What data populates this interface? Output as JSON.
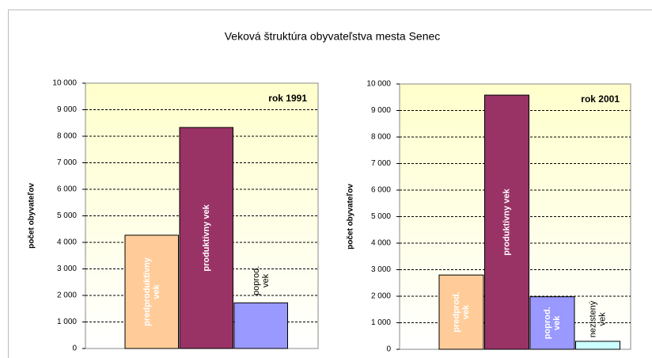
{
  "title": "Veková štruktúra obyvateľstva mesta Senec",
  "chart_data": [
    {
      "type": "bar",
      "annotation": "rok 1991",
      "ylabel": "počet obyvateľov",
      "categories": [
        [
          "predproduktívny",
          "vek"
        ],
        [
          "produktívny vek"
        ],
        [
          "poprod.",
          "vek"
        ]
      ],
      "values": [
        4270,
        8330,
        1720
      ],
      "colors": [
        "#FFCC99",
        "#993366",
        "#9999FF"
      ],
      "ylim": [
        0,
        10000
      ],
      "yticks": [
        0,
        {
          "value": 1000,
          "label": "1 000"
        },
        {
          "value": 2000,
          "label": "2 000"
        },
        {
          "value": 3000,
          "label": "3 000"
        },
        {
          "value": 4000,
          "label": "4 000"
        },
        {
          "value": 5000,
          "label": "5 000"
        },
        {
          "value": 6000,
          "label": "6 000"
        },
        {
          "value": 7000,
          "label": "7 000"
        },
        {
          "value": 8000,
          "label": "8 000"
        },
        {
          "value": 9000,
          "label": "9 000"
        },
        {
          "value": 10000,
          "label": "10 000"
        }
      ],
      "grid": true
    },
    {
      "type": "bar",
      "annotation": "rok 2001",
      "ylabel": "počet obyvateľov",
      "categories": [
        [
          "predprod.",
          "vek"
        ],
        [
          "produktívny vek"
        ],
        [
          "poprod.",
          "vek"
        ],
        [
          "nezistený",
          "vek"
        ]
      ],
      "values": [
        2800,
        9580,
        1980,
        300
      ],
      "colors": [
        "#FFCC99",
        "#993366",
        "#9999FF",
        "#CCFFFF"
      ],
      "ylim": [
        0,
        10000
      ],
      "yticks": [
        0,
        {
          "value": 1000,
          "label": "1 000"
        },
        {
          "value": 2000,
          "label": "2 000"
        },
        {
          "value": 3000,
          "label": "3 000"
        },
        {
          "value": 4000,
          "label": "4 000"
        },
        {
          "value": 5000,
          "label": "5 000"
        },
        {
          "value": 6000,
          "label": "6 000"
        },
        {
          "value": 7000,
          "label": "7 000"
        },
        {
          "value": 8000,
          "label": "8 000"
        },
        {
          "value": 9000,
          "label": "9 000"
        },
        {
          "value": 10000,
          "label": "10 000"
        }
      ],
      "grid": true
    }
  ]
}
